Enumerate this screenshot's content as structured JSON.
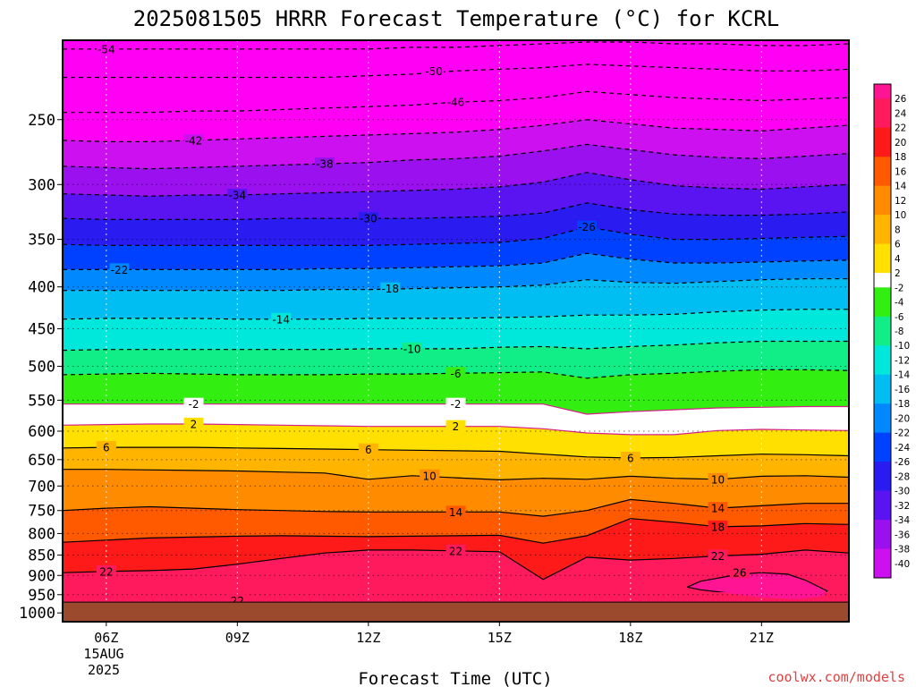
{
  "chart_data": {
    "type": "heatmap",
    "title": "2025081505 HRRR Forecast Temperature (°C) for KCRL",
    "xlabel": "Forecast Time (UTC)",
    "ylabel": "",
    "credit": "coolwx.com/models",
    "x_ticks": [
      "06Z",
      "09Z",
      "12Z",
      "15Z",
      "18Z",
      "21Z"
    ],
    "x_date_line1": "15AUG",
    "x_date_line2": "2025",
    "x_range_hours": [
      5,
      23
    ],
    "y_ticks": [
      "250",
      "300",
      "350",
      "400",
      "450",
      "500",
      "550",
      "600",
      "650",
      "700",
      "750",
      "800",
      "850",
      "900",
      "950",
      "1000"
    ],
    "y_range_hPa": [
      200,
      1025
    ],
    "y_scale": "log-pressure (inverted)",
    "surface_pressure_hPa": 970,
    "colorbar_labels": [
      "26",
      "24",
      "22",
      "20",
      "18",
      "16",
      "14",
      "12",
      "10",
      "8",
      "6",
      "4",
      "2",
      "-2",
      "-4",
      "-6",
      "-8",
      "-10",
      "-12",
      "-14",
      "-16",
      "-18",
      "-20",
      "-22",
      "-24",
      "-26",
      "-28",
      "-30",
      "-32",
      "-34",
      "-36",
      "-38",
      "-40"
    ],
    "x_hours": [
      5,
      6,
      7,
      8,
      9,
      10,
      11,
      12,
      13,
      14,
      15,
      16,
      17,
      18,
      19,
      20,
      21,
      22,
      23
    ],
    "isotherm_levels": [
      {
        "value": -54,
        "label": "-54",
        "pressures": [
          205,
          205,
          205,
          205,
          205,
          205,
          205,
          205,
          204,
          204,
          203,
          202,
          201,
          201,
          202,
          202,
          203,
          203,
          202
        ]
      },
      {
        "value": -50,
        "label": "-50",
        "pressures": [
          222,
          222,
          222,
          222,
          222,
          222,
          222,
          221,
          220,
          218,
          217,
          216,
          214,
          215,
          216,
          217,
          218,
          218,
          217
        ]
      },
      {
        "value": -46,
        "label": "-46",
        "pressures": [
          245,
          245,
          245,
          244,
          244,
          243,
          242,
          241,
          240,
          238,
          237,
          235,
          231,
          233,
          235,
          236,
          237,
          236,
          235
        ]
      },
      {
        "value": -42,
        "label": "-42",
        "pressures": [
          265,
          266,
          266,
          265,
          264,
          263,
          262,
          261,
          260,
          259,
          257,
          254,
          250,
          253,
          256,
          257,
          258,
          256,
          254
        ]
      },
      {
        "value": -38,
        "label": "-38",
        "pressures": [
          285,
          286,
          287,
          286,
          285,
          284,
          283,
          282,
          280,
          279,
          277,
          273,
          268,
          272,
          276,
          278,
          279,
          277,
          275
        ]
      },
      {
        "value": -34,
        "label": "-34",
        "pressures": [
          308,
          309,
          310,
          309,
          309,
          308,
          307,
          306,
          305,
          304,
          302,
          298,
          290,
          296,
          301,
          303,
          304,
          302,
          300
        ]
      },
      {
        "value": -30,
        "label": "-30",
        "pressures": [
          330,
          331,
          331,
          331,
          331,
          330,
          330,
          330,
          330,
          329,
          328,
          325,
          316,
          322,
          326,
          327,
          327,
          326,
          324
        ]
      },
      {
        "value": -26,
        "label": "-26",
        "pressures": [
          355,
          356,
          356,
          356,
          356,
          356,
          356,
          356,
          355,
          354,
          353,
          349,
          338,
          345,
          350,
          350,
          349,
          348,
          347
        ]
      },
      {
        "value": -22,
        "label": "-22",
        "pressures": [
          381,
          381,
          381,
          381,
          381,
          381,
          380,
          380,
          379,
          378,
          377,
          374,
          364,
          370,
          374,
          374,
          373,
          372,
          371
        ]
      },
      {
        "value": -18,
        "label": "-18",
        "pressures": [
          404,
          404,
          404,
          404,
          404,
          404,
          403,
          403,
          402,
          401,
          400,
          398,
          392,
          395,
          396,
          394,
          392,
          391,
          391
        ]
      },
      {
        "value": -14,
        "label": "-14",
        "pressures": [
          438,
          437,
          437,
          437,
          438,
          438,
          438,
          437,
          437,
          437,
          436,
          435,
          433,
          433,
          432,
          429,
          427,
          426,
          426
        ]
      },
      {
        "value": -10,
        "label": "-10",
        "pressures": [
          478,
          477,
          477,
          477,
          477,
          477,
          477,
          476,
          476,
          476,
          474,
          473,
          476,
          473,
          471,
          468,
          466,
          466,
          466
        ]
      },
      {
        "value": -6,
        "label": "-6",
        "pressures": [
          512,
          511,
          510,
          511,
          512,
          512,
          512,
          511,
          511,
          510,
          509,
          508,
          517,
          512,
          510,
          507,
          505,
          505,
          506
        ]
      },
      {
        "value": -2,
        "label": "-2",
        "pressures": [
          556,
          556,
          556,
          556,
          556,
          556,
          556,
          556,
          556,
          556,
          556,
          556,
          572,
          568,
          565,
          562,
          561,
          560,
          560
        ]
      },
      {
        "value": 2,
        "label": "2",
        "pressures": [
          590,
          589,
          588,
          588,
          589,
          590,
          591,
          592,
          592,
          592,
          592,
          596,
          603,
          606,
          606,
          599,
          597,
          598,
          599
        ]
      },
      {
        "value": 6,
        "label": "6",
        "pressures": [
          629,
          628,
          628,
          628,
          629,
          630,
          631,
          632,
          633,
          634,
          635,
          640,
          645,
          647,
          646,
          643,
          640,
          641,
          643
        ]
      },
      {
        "value": 10,
        "label": "10",
        "pressures": [
          668,
          668,
          669,
          670,
          671,
          673,
          675,
          687,
          680,
          684,
          688,
          685,
          687,
          681,
          685,
          687,
          681,
          680,
          683
        ]
      },
      {
        "value": 14,
        "label": "14",
        "pressures": [
          750,
          745,
          742,
          745,
          748,
          750,
          752,
          753,
          753,
          753,
          753,
          762,
          750,
          727,
          735,
          745,
          740,
          735,
          735
        ]
      },
      {
        "value": 18,
        "label": "18",
        "pressures": [
          820,
          815,
          810,
          808,
          806,
          805,
          806,
          807,
          806,
          805,
          804,
          822,
          805,
          767,
          775,
          785,
          783,
          778,
          780
        ]
      },
      {
        "value": 22,
        "label": "22",
        "pressures": [
          893,
          890,
          888,
          884,
          872,
          858,
          845,
          838,
          838,
          840,
          842,
          910,
          855,
          862,
          858,
          852,
          848,
          838,
          845
        ]
      }
    ],
    "closed_contours": [
      {
        "label": "26",
        "hours": [
          19.3,
          19.6,
          20.5,
          21.0,
          21.6,
          22.0,
          22.5,
          22.4,
          21.8,
          21.0,
          20.2,
          19.6,
          19.3
        ],
        "pressures": [
          930,
          915,
          897,
          893,
          897,
          912,
          940,
          955,
          962,
          958,
          945,
          937,
          930
        ]
      },
      {
        "label": "22",
        "hours": [
          8.7,
          9.5,
          11.0,
          12.5,
          13.2,
          12.0,
          10.5,
          9.2,
          8.7
        ],
        "pressures": [
          965,
          958,
          955,
          957,
          962,
          966,
          966,
          967,
          965
        ]
      }
    ]
  }
}
